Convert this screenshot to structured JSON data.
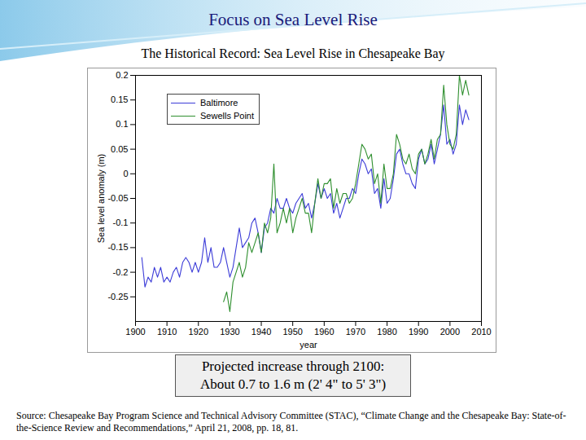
{
  "chart_data": {
    "type": "line",
    "title": "Focus on Sea Level Rise",
    "subtitle": "The Historical Record: Sea Level Rise in Chesapeake Bay",
    "x_label": "year",
    "y_label": "Sea level anomaly (m)",
    "x": [
      1902,
      1903,
      1904,
      1905,
      1906,
      1907,
      1908,
      1909,
      1910,
      1911,
      1912,
      1913,
      1914,
      1915,
      1916,
      1917,
      1918,
      1919,
      1920,
      1921,
      1922,
      1923,
      1924,
      1925,
      1926,
      1927,
      1928,
      1929,
      1930,
      1931,
      1932,
      1933,
      1934,
      1935,
      1936,
      1937,
      1938,
      1939,
      1940,
      1941,
      1942,
      1943,
      1944,
      1945,
      1946,
      1947,
      1948,
      1949,
      1950,
      1951,
      1952,
      1953,
      1954,
      1955,
      1956,
      1957,
      1958,
      1959,
      1960,
      1961,
      1962,
      1963,
      1964,
      1965,
      1966,
      1967,
      1968,
      1969,
      1970,
      1971,
      1972,
      1973,
      1974,
      1975,
      1976,
      1977,
      1978,
      1979,
      1980,
      1981,
      1982,
      1983,
      1984,
      1985,
      1986,
      1987,
      1988,
      1989,
      1990,
      1991,
      1992,
      1993,
      1994,
      1995,
      1996,
      1997,
      1998,
      1999,
      2000,
      2001,
      2002,
      2003,
      2004,
      2005,
      2006
    ],
    "series": [
      {
        "name": "Baltimore",
        "color": "#3c3cd8",
        "values": [
          -0.17,
          -0.23,
          -0.21,
          -0.22,
          -0.19,
          -0.21,
          -0.19,
          -0.22,
          -0.21,
          -0.22,
          -0.2,
          -0.19,
          -0.21,
          -0.18,
          -0.17,
          -0.18,
          -0.2,
          -0.18,
          -0.2,
          -0.18,
          -0.13,
          -0.18,
          -0.15,
          -0.19,
          -0.19,
          -0.18,
          -0.15,
          -0.18,
          -0.21,
          -0.19,
          -0.15,
          -0.11,
          -0.15,
          -0.14,
          -0.13,
          -0.1,
          -0.09,
          -0.12,
          -0.16,
          -0.11,
          -0.1,
          -0.07,
          -0.08,
          -0.05,
          -0.07,
          -0.07,
          -0.05,
          -0.07,
          -0.08,
          -0.06,
          -0.05,
          -0.04,
          -0.07,
          -0.06,
          -0.09,
          -0.06,
          -0.02,
          -0.05,
          -0.03,
          -0.05,
          -0.04,
          -0.08,
          -0.06,
          -0.09,
          -0.07,
          -0.05,
          -0.05,
          -0.03,
          -0.04,
          0.0,
          0.03,
          0.02,
          0.0,
          0.01,
          -0.04,
          -0.03,
          -0.07,
          -0.01,
          -0.06,
          -0.05,
          -0.01,
          0.04,
          0.05,
          0.02,
          0.0,
          0.0,
          -0.02,
          -0.03,
          0.03,
          0.05,
          0.02,
          0.03,
          0.06,
          0.02,
          0.05,
          0.08,
          0.14,
          0.06,
          0.07,
          0.04,
          0.06,
          0.14,
          0.1,
          0.13,
          0.11
        ]
      },
      {
        "name": "Sewells Point",
        "color": "#2f8f2f",
        "values": [
          null,
          null,
          null,
          null,
          null,
          null,
          null,
          null,
          null,
          null,
          null,
          null,
          null,
          null,
          null,
          null,
          null,
          null,
          null,
          null,
          null,
          null,
          null,
          null,
          null,
          null,
          -0.26,
          -0.24,
          -0.28,
          -0.22,
          -0.2,
          -0.18,
          -0.21,
          -0.19,
          -0.14,
          -0.16,
          -0.14,
          -0.12,
          -0.16,
          -0.1,
          -0.12,
          -0.09,
          0.02,
          -0.12,
          -0.1,
          -0.07,
          -0.1,
          -0.07,
          -0.12,
          -0.09,
          -0.07,
          -0.05,
          -0.08,
          -0.08,
          -0.12,
          -0.06,
          -0.01,
          -0.05,
          -0.02,
          -0.02,
          -0.01,
          -0.07,
          -0.03,
          -0.06,
          -0.04,
          -0.04,
          -0.06,
          -0.05,
          -0.02,
          0.02,
          0.06,
          0.05,
          0.03,
          0.04,
          -0.02,
          0.0,
          -0.06,
          0.02,
          -0.03,
          -0.03,
          0.0,
          0.08,
          0.06,
          0.03,
          0.02,
          0.04,
          0.01,
          0.0,
          0.04,
          0.05,
          0.02,
          0.04,
          0.07,
          0.03,
          0.07,
          0.08,
          0.18,
          0.1,
          0.06,
          0.05,
          0.08,
          0.2,
          0.16,
          0.19,
          0.16
        ]
      }
    ],
    "xlim": [
      1900,
      2010
    ],
    "ylim": [
      -0.3,
      0.2
    ],
    "xticks": [
      1900,
      1910,
      1920,
      1930,
      1940,
      1950,
      1960,
      1970,
      1980,
      1990,
      2000,
      2010
    ],
    "yticks": [
      -0.25,
      -0.2,
      -0.15,
      -0.1,
      -0.05,
      0,
      0.05,
      0.1,
      0.15,
      0.2
    ],
    "legend": "upper left",
    "annotations": [
      "Projected increase through 2100:",
      "About 0.7 to 1.6 m  (2' 4\" to 5' 3\")"
    ],
    "source": "Source:  Chesapeake Bay Program Science and Technical Advisory Committee (STAC), “Climate Change and the Chesapeake Bay: State-of-the-Science Review and Recommendations,” April 21, 2008, pp. 18, 81."
  }
}
